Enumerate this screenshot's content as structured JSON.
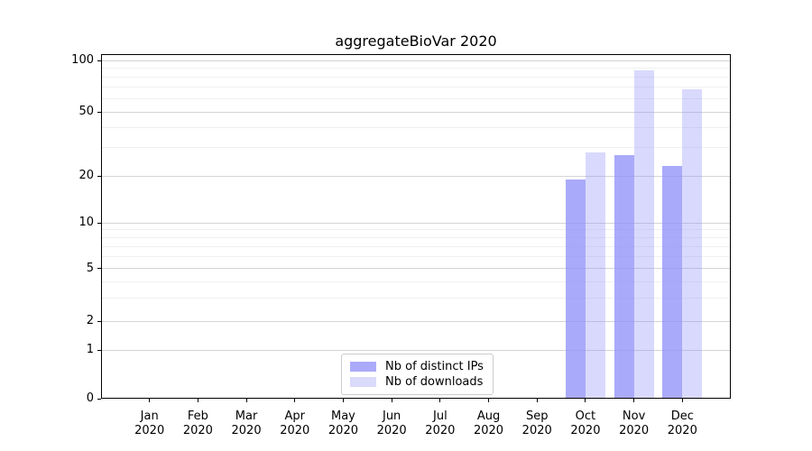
{
  "chart_data": {
    "type": "bar",
    "title": "aggregateBioVar 2020",
    "scale": "symlog",
    "grid": true,
    "legend_position": "lower center (inside axes)",
    "categories": [
      "Jan",
      "Feb",
      "Mar",
      "Apr",
      "May",
      "Jun",
      "Jul",
      "Aug",
      "Sep",
      "Oct",
      "Nov",
      "Dec"
    ],
    "category_year": "2020",
    "yticks": [
      0,
      1,
      2,
      5,
      10,
      20,
      50,
      100
    ],
    "minor_gridlines": [
      3,
      4,
      6,
      7,
      8,
      9,
      30,
      40,
      60,
      70,
      80,
      90
    ],
    "ylim": [
      0,
      110
    ],
    "series": [
      {
        "name": "Nb of distinct IPs",
        "values": [
          0,
          0,
          0,
          0,
          0,
          0,
          0,
          0,
          0,
          19,
          27,
          23
        ],
        "swatch_color": "#aaaafa",
        "bar_fill": "rgba(146,146,249,0.78)"
      },
      {
        "name": "Nb of downloads",
        "values": [
          0,
          0,
          0,
          0,
          0,
          0,
          0,
          0,
          0,
          28,
          88,
          68
        ],
        "swatch_color": "#dadafa",
        "bar_fill": "rgba(146,146,249,0.35)"
      }
    ]
  },
  "colors": {
    "bar_base": "#9292f9",
    "major_grid": "#d4d4d4",
    "minor_grid": "#f0f0f0",
    "spine": "#000000",
    "legend_border": "#cccccc"
  }
}
